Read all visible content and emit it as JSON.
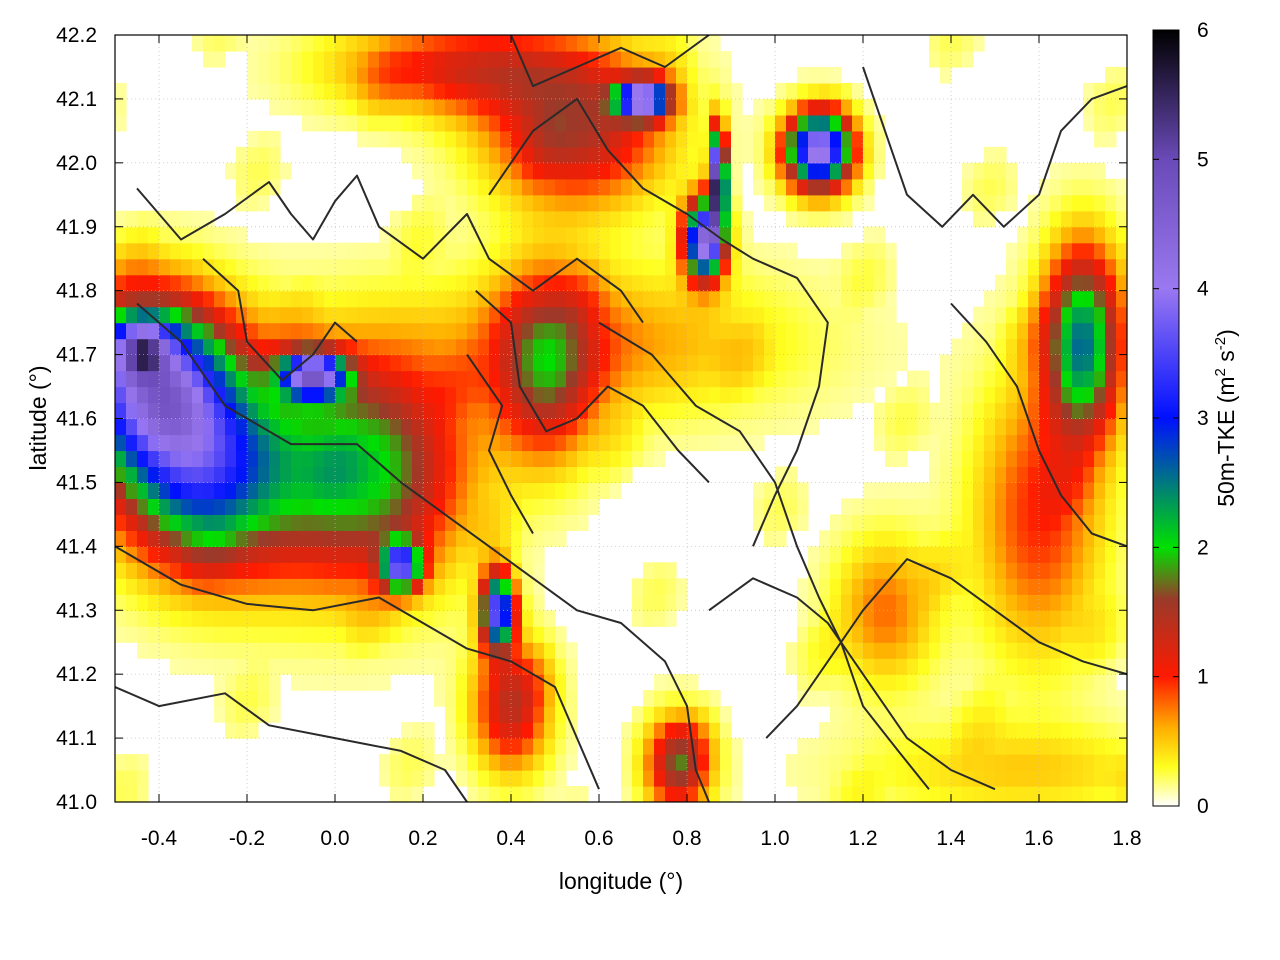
{
  "chart_data": {
    "type": "heatmap",
    "variable": "50m-TKE",
    "xlabel": "longitude (°)",
    "ylabel": "latitude (°)",
    "colorbar_label_main": "50m-TKE (m",
    "colorbar_label_sup1": "2",
    "colorbar_label_mid": " s",
    "colorbar_label_sup2": "-2",
    "colorbar_label_end": ")",
    "xlim": [
      -0.5,
      1.8
    ],
    "ylim": [
      41.0,
      42.2
    ],
    "clim": [
      0,
      6
    ],
    "xticks": [
      "-0.4",
      "-0.2",
      "0.0",
      "0.2",
      "0.4",
      "0.6",
      "0.8",
      "1.0",
      "1.2",
      "1.4",
      "1.6",
      "1.8"
    ],
    "xtick_values": [
      -0.4,
      -0.2,
      0.0,
      0.2,
      0.4,
      0.6,
      0.8,
      1.0,
      1.2,
      1.4,
      1.6,
      1.8
    ],
    "yticks": [
      "41.0",
      "41.1",
      "41.2",
      "41.3",
      "41.4",
      "41.5",
      "41.6",
      "41.7",
      "41.8",
      "41.9",
      "42.0",
      "42.1",
      "42.2"
    ],
    "ytick_values": [
      41.0,
      41.1,
      41.2,
      41.3,
      41.4,
      41.5,
      41.6,
      41.7,
      41.8,
      41.9,
      42.0,
      42.1,
      42.2
    ],
    "cticks": [
      "0",
      "1",
      "2",
      "3",
      "4",
      "5",
      "6"
    ],
    "ctick_values": [
      0,
      1,
      2,
      3,
      4,
      5,
      6
    ],
    "colormap": [
      {
        "v": 0.0,
        "c": "#ffffff"
      },
      {
        "v": 0.3,
        "c": "#ffff20"
      },
      {
        "v": 0.6,
        "c": "#ffb000"
      },
      {
        "v": 1.0,
        "c": "#ff1a00"
      },
      {
        "v": 1.6,
        "c": "#9a3a2a"
      },
      {
        "v": 2.0,
        "c": "#00e000"
      },
      {
        "v": 3.0,
        "c": "#0010ff"
      },
      {
        "v": 4.0,
        "c": "#9a78f0"
      },
      {
        "v": 5.0,
        "c": "#6a4ab8"
      },
      {
        "v": 6.0,
        "c": "#000000"
      }
    ],
    "hotspots": [
      {
        "lon": -0.42,
        "lat": 41.66,
        "sx": 0.12,
        "sy": 0.09,
        "amp": 3.6
      },
      {
        "lon": -0.44,
        "lat": 41.71,
        "sx": 0.04,
        "sy": 0.03,
        "amp": 2.2
      },
      {
        "lon": -0.32,
        "lat": 41.52,
        "sx": 0.12,
        "sy": 0.1,
        "amp": 2.0
      },
      {
        "lon": -0.15,
        "lat": 41.52,
        "sx": 0.18,
        "sy": 0.12,
        "amp": 1.3
      },
      {
        "lon": 0.1,
        "lat": 41.52,
        "sx": 0.14,
        "sy": 0.12,
        "amp": 1.5
      },
      {
        "lon": -0.05,
        "lat": 41.67,
        "sx": 0.05,
        "sy": 0.025,
        "amp": 3.8
      },
      {
        "lon": 0.15,
        "lat": 41.37,
        "sx": 0.03,
        "sy": 0.025,
        "amp": 3.2
      },
      {
        "lon": 0.37,
        "lat": 41.3,
        "sx": 0.025,
        "sy": 0.04,
        "amp": 3.6
      },
      {
        "lon": 0.48,
        "lat": 41.68,
        "sx": 0.08,
        "sy": 0.1,
        "amp": 1.4
      },
      {
        "lon": 0.4,
        "lat": 41.15,
        "sx": 0.06,
        "sy": 0.07,
        "amp": 1.3
      },
      {
        "lon": 0.55,
        "lat": 42.05,
        "sx": 0.14,
        "sy": 0.08,
        "amp": 1.4
      },
      {
        "lon": 0.7,
        "lat": 42.1,
        "sx": 0.04,
        "sy": 0.02,
        "amp": 4.0
      },
      {
        "lon": 0.87,
        "lat": 41.97,
        "sx": 0.012,
        "sy": 0.05,
        "amp": 6.0
      },
      {
        "lon": 0.84,
        "lat": 41.88,
        "sx": 0.03,
        "sy": 0.04,
        "amp": 4.2
      },
      {
        "lon": 1.1,
        "lat": 42.02,
        "sx": 0.05,
        "sy": 0.04,
        "amp": 4.1
      },
      {
        "lon": 1.7,
        "lat": 41.72,
        "sx": 0.06,
        "sy": 0.1,
        "amp": 2.4
      },
      {
        "lon": 0.78,
        "lat": 41.06,
        "sx": 0.05,
        "sy": 0.05,
        "amp": 1.6
      },
      {
        "lon": 0.3,
        "lat": 42.15,
        "sx": 0.2,
        "sy": 0.05,
        "amp": 1.1
      },
      {
        "lon": 0.6,
        "lat": 41.72,
        "sx": 0.3,
        "sy": 0.08,
        "amp": 0.6
      },
      {
        "lon": 1.6,
        "lat": 41.45,
        "sx": 0.1,
        "sy": 0.15,
        "amp": 0.9
      },
      {
        "lon": 1.25,
        "lat": 41.3,
        "sx": 0.08,
        "sy": 0.08,
        "amp": 0.7
      },
      {
        "lon": 1.55,
        "lat": 41.05,
        "sx": 0.25,
        "sy": 0.05,
        "amp": 0.4
      }
    ],
    "contour_lines": [
      [
        [
          -0.45,
          41.96
        ],
        [
          -0.35,
          41.88
        ],
        [
          -0.25,
          41.92
        ],
        [
          -0.15,
          41.97
        ],
        [
          -0.1,
          41.92
        ],
        [
          -0.05,
          41.88
        ],
        [
          0.0,
          41.94
        ],
        [
          0.05,
          41.98
        ],
        [
          0.1,
          41.9
        ],
        [
          0.2,
          41.85
        ],
        [
          0.3,
          41.92
        ],
        [
          0.35,
          41.85
        ],
        [
          0.45,
          41.8
        ],
        [
          0.55,
          41.85
        ],
        [
          0.65,
          41.8
        ],
        [
          0.7,
          41.75
        ]
      ],
      [
        [
          -0.45,
          41.78
        ],
        [
          -0.35,
          41.72
        ],
        [
          -0.25,
          41.62
        ],
        [
          -0.1,
          41.56
        ],
        [
          0.05,
          41.56
        ],
        [
          0.15,
          41.5
        ],
        [
          0.25,
          41.45
        ],
        [
          0.35,
          41.4
        ],
        [
          0.45,
          41.35
        ],
        [
          0.55,
          41.3
        ],
        [
          0.65,
          41.28
        ],
        [
          0.75,
          41.22
        ],
        [
          0.8,
          41.15
        ],
        [
          0.82,
          41.05
        ],
        [
          0.85,
          41.0
        ]
      ],
      [
        [
          -0.5,
          41.4
        ],
        [
          -0.35,
          41.34
        ],
        [
          -0.2,
          41.31
        ],
        [
          -0.05,
          41.3
        ],
        [
          0.1,
          41.32
        ],
        [
          0.2,
          41.28
        ],
        [
          0.3,
          41.24
        ],
        [
          0.4,
          41.22
        ],
        [
          0.5,
          41.18
        ],
        [
          0.55,
          41.1
        ],
        [
          0.6,
          41.02
        ]
      ],
      [
        [
          -0.5,
          41.18
        ],
        [
          -0.4,
          41.15
        ],
        [
          -0.25,
          41.17
        ],
        [
          -0.15,
          41.12
        ],
        [
          0.0,
          41.1
        ],
        [
          0.15,
          41.08
        ],
        [
          0.25,
          41.05
        ],
        [
          0.3,
          41.0
        ]
      ],
      [
        [
          0.35,
          41.95
        ],
        [
          0.45,
          42.05
        ],
        [
          0.55,
          42.1
        ],
        [
          0.62,
          42.02
        ],
        [
          0.7,
          41.96
        ],
        [
          0.8,
          41.92
        ],
        [
          0.88,
          41.88
        ],
        [
          0.95,
          41.85
        ],
        [
          1.05,
          41.82
        ],
        [
          1.12,
          41.75
        ],
        [
          1.1,
          41.65
        ],
        [
          1.05,
          41.55
        ],
        [
          1.0,
          41.48
        ],
        [
          0.95,
          41.4
        ]
      ],
      [
        [
          0.6,
          41.75
        ],
        [
          0.72,
          41.7
        ],
        [
          0.82,
          41.62
        ],
        [
          0.92,
          41.58
        ],
        [
          1.0,
          41.5
        ],
        [
          1.05,
          41.4
        ],
        [
          1.1,
          41.32
        ],
        [
          1.15,
          41.25
        ],
        [
          1.2,
          41.15
        ],
        [
          1.28,
          41.08
        ],
        [
          1.35,
          41.02
        ]
      ],
      [
        [
          0.85,
          41.3
        ],
        [
          0.95,
          41.35
        ],
        [
          1.05,
          41.32
        ],
        [
          1.12,
          41.28
        ],
        [
          1.18,
          41.22
        ],
        [
          1.25,
          41.15
        ],
        [
          1.3,
          41.1
        ],
        [
          1.4,
          41.05
        ],
        [
          1.5,
          41.02
        ]
      ],
      [
        [
          0.98,
          41.1
        ],
        [
          1.05,
          41.15
        ],
        [
          1.12,
          41.22
        ],
        [
          1.2,
          41.3
        ],
        [
          1.3,
          41.38
        ],
        [
          1.4,
          41.35
        ],
        [
          1.5,
          41.3
        ],
        [
          1.6,
          41.25
        ],
        [
          1.7,
          41.22
        ],
        [
          1.8,
          41.2
        ]
      ],
      [
        [
          1.2,
          42.15
        ],
        [
          1.25,
          42.05
        ],
        [
          1.3,
          41.95
        ],
        [
          1.38,
          41.9
        ],
        [
          1.45,
          41.95
        ],
        [
          1.52,
          41.9
        ],
        [
          1.6,
          41.95
        ],
        [
          1.65,
          42.05
        ],
        [
          1.72,
          42.1
        ],
        [
          1.8,
          42.12
        ]
      ],
      [
        [
          1.4,
          41.78
        ],
        [
          1.48,
          41.72
        ],
        [
          1.55,
          41.65
        ],
        [
          1.6,
          41.55
        ],
        [
          1.65,
          41.48
        ],
        [
          1.72,
          41.42
        ],
        [
          1.8,
          41.4
        ]
      ],
      [
        [
          0.4,
          42.2
        ],
        [
          0.45,
          42.12
        ],
        [
          0.55,
          42.15
        ],
        [
          0.65,
          42.18
        ],
        [
          0.75,
          42.15
        ],
        [
          0.85,
          42.2
        ]
      ],
      [
        [
          -0.3,
          41.85
        ],
        [
          -0.22,
          41.8
        ],
        [
          -0.2,
          41.72
        ],
        [
          -0.12,
          41.66
        ],
        [
          -0.05,
          41.7
        ],
        [
          0.0,
          41.75
        ],
        [
          0.05,
          41.72
        ]
      ],
      [
        [
          0.3,
          41.7
        ],
        [
          0.38,
          41.62
        ],
        [
          0.35,
          41.55
        ],
        [
          0.4,
          41.48
        ],
        [
          0.45,
          41.42
        ]
      ],
      [
        [
          0.32,
          41.8
        ],
        [
          0.4,
          41.75
        ],
        [
          0.42,
          41.65
        ],
        [
          0.48,
          41.58
        ],
        [
          0.55,
          41.6
        ],
        [
          0.62,
          41.65
        ],
        [
          0.7,
          41.62
        ],
        [
          0.78,
          41.55
        ],
        [
          0.85,
          41.5
        ]
      ]
    ]
  }
}
